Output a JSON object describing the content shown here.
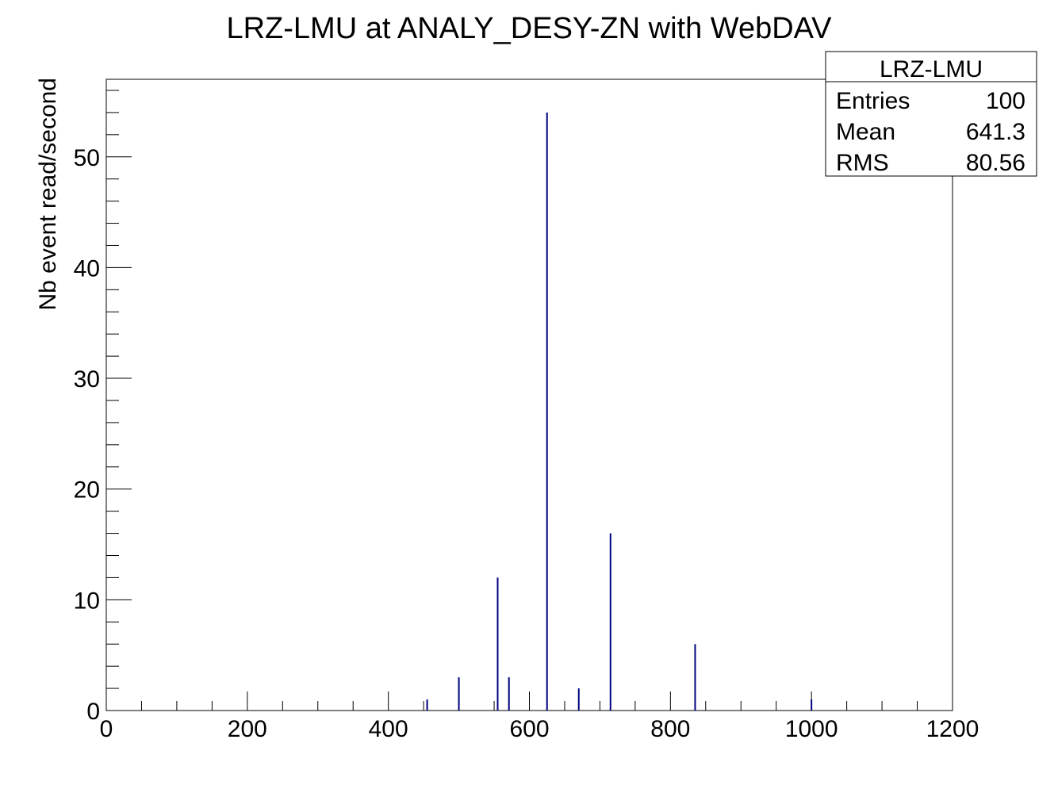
{
  "chart_data": {
    "type": "bar",
    "title": "LRZ-LMU at ANALY_DESY-ZN with WebDAV",
    "xlabel": "",
    "ylabel": "Nb event read/second",
    "xlim": [
      0,
      1200
    ],
    "ylim": [
      0,
      57
    ],
    "x_ticks": [
      0,
      200,
      400,
      600,
      800,
      1000,
      1200
    ],
    "y_ticks": [
      0,
      10,
      20,
      30,
      40,
      50
    ],
    "grid": false,
    "bar_color": "#000080",
    "series": [
      {
        "x": [
          455,
          500,
          555,
          571,
          625,
          670,
          715,
          835,
          1000
        ],
        "values": [
          1,
          3,
          12,
          3,
          54,
          2,
          16,
          6,
          1
        ]
      }
    ],
    "legend": {
      "position": "top-right",
      "title": "LRZ-LMU",
      "rows": [
        {
          "label": "Entries",
          "value": "100"
        },
        {
          "label": "Mean",
          "value": "641.3"
        },
        {
          "label": "RMS",
          "value": "80.56"
        }
      ]
    }
  }
}
